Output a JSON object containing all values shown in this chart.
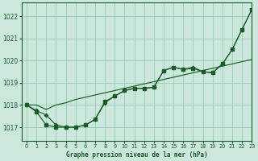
{
  "title": "Graphe pression niveau de la mer (hPa)",
  "background_color": "#cce8dc",
  "grid_color": "#99ccb8",
  "line_color": "#1a5c28",
  "xlim": [
    -0.5,
    23
  ],
  "ylim": [
    1016.4,
    1022.6
  ],
  "yticks": [
    1017,
    1018,
    1019,
    1020,
    1021,
    1022
  ],
  "xticks": [
    0,
    1,
    2,
    3,
    4,
    5,
    6,
    7,
    8,
    9,
    10,
    11,
    12,
    13,
    14,
    15,
    16,
    17,
    18,
    19,
    20,
    21,
    22,
    23
  ],
  "series1_x": [
    0,
    1,
    2,
    3,
    4,
    5,
    6,
    7,
    8,
    9,
    10,
    11,
    12,
    13,
    14,
    15,
    16,
    17,
    18,
    19,
    20,
    21,
    22,
    23
  ],
  "series1_y": [
    1018.0,
    1017.75,
    1017.55,
    1017.1,
    1017.0,
    1017.0,
    1017.1,
    1017.35,
    1018.1,
    1018.4,
    1018.65,
    1018.75,
    1018.75,
    1018.8,
    1019.55,
    1019.7,
    1019.6,
    1019.7,
    1019.5,
    1019.45,
    1019.85,
    1020.5,
    1021.4,
    1022.3
  ],
  "series2_x": [
    0,
    1,
    2,
    3,
    4,
    5,
    6,
    7,
    8,
    9,
    10,
    11,
    12,
    13,
    14,
    15,
    16,
    17,
    18,
    19,
    20,
    21,
    22,
    23
  ],
  "series2_y": [
    1018.0,
    1017.7,
    1017.1,
    1017.0,
    1017.0,
    1017.0,
    1017.1,
    1017.35,
    1018.15,
    1018.4,
    1018.65,
    1018.75,
    1018.75,
    1018.8,
    1019.55,
    1019.7,
    1019.6,
    1019.65,
    1019.5,
    1019.45,
    1019.85,
    1020.5,
    1021.4,
    1022.3
  ],
  "series3_x": [
    0,
    1,
    2,
    3,
    4,
    5,
    6,
    7,
    8,
    9,
    10,
    11,
    12,
    13,
    14,
    15,
    16,
    17,
    18,
    19,
    20,
    21,
    22,
    23
  ],
  "series3_y": [
    1018.0,
    1018.0,
    1017.8,
    1018.0,
    1018.1,
    1018.25,
    1018.35,
    1018.45,
    1018.55,
    1018.65,
    1018.75,
    1018.85,
    1018.95,
    1019.05,
    1019.15,
    1019.25,
    1019.35,
    1019.45,
    1019.55,
    1019.65,
    1019.75,
    1019.85,
    1019.95,
    1020.05
  ]
}
